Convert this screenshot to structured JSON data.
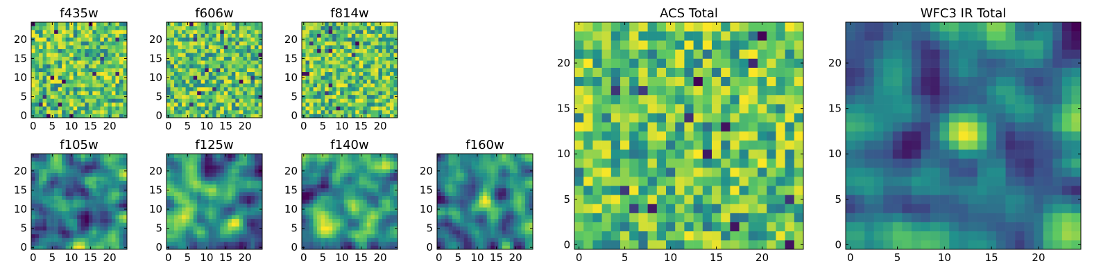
{
  "figure": {
    "colormap": [
      "#440154",
      "#3b528b",
      "#21918c",
      "#5ec962",
      "#fde725"
    ]
  },
  "chart_data": [
    {
      "type": "heatmap",
      "title": "f435w",
      "xlim": [
        -0.5,
        24.5
      ],
      "ylim": [
        -0.5,
        24.5
      ],
      "xticks": [
        0,
        5,
        10,
        15,
        20
      ],
      "yticks": [
        0,
        5,
        10,
        15,
        20
      ],
      "size": [
        25,
        25
      ],
      "colormap": "viridis",
      "pattern": "noise",
      "seed": 11
    },
    {
      "type": "heatmap",
      "title": "f606w",
      "xlim": [
        -0.5,
        24.5
      ],
      "ylim": [
        -0.5,
        24.5
      ],
      "xticks": [
        0,
        5,
        10,
        15,
        20
      ],
      "yticks": [
        0,
        5,
        10,
        15,
        20
      ],
      "size": [
        25,
        25
      ],
      "colormap": "viridis",
      "pattern": "noise",
      "seed": 23
    },
    {
      "type": "heatmap",
      "title": "f814w",
      "xlim": [
        -0.5,
        24.5
      ],
      "ylim": [
        -0.5,
        24.5
      ],
      "xticks": [
        0,
        5,
        10,
        15,
        20
      ],
      "yticks": [
        0,
        5,
        10,
        15,
        20
      ],
      "size": [
        25,
        25
      ],
      "colormap": "viridis",
      "pattern": "noise",
      "seed": 37
    },
    {
      "type": "heatmap",
      "title": "f105w",
      "xlim": [
        -0.5,
        24.5
      ],
      "ylim": [
        -0.5,
        24.5
      ],
      "xticks": [
        0,
        5,
        10,
        15,
        20
      ],
      "yticks": [
        0,
        5,
        10,
        15,
        20
      ],
      "size": [
        25,
        25
      ],
      "colormap": "viridis",
      "pattern": "smooth",
      "seed": 41
    },
    {
      "type": "heatmap",
      "title": "f125w",
      "xlim": [
        -0.5,
        24.5
      ],
      "ylim": [
        -0.5,
        24.5
      ],
      "xticks": [
        0,
        5,
        10,
        15,
        20
      ],
      "yticks": [
        0,
        5,
        10,
        15,
        20
      ],
      "size": [
        25,
        25
      ],
      "colormap": "viridis",
      "pattern": "smooth",
      "seed": 53
    },
    {
      "type": "heatmap",
      "title": "f140w",
      "xlim": [
        -0.5,
        24.5
      ],
      "ylim": [
        -0.5,
        24.5
      ],
      "xticks": [
        0,
        5,
        10,
        15,
        20
      ],
      "yticks": [
        0,
        5,
        10,
        15,
        20
      ],
      "size": [
        25,
        25
      ],
      "colormap": "viridis",
      "pattern": "smooth",
      "seed": 67
    },
    {
      "type": "heatmap",
      "title": "f160w",
      "xlim": [
        -0.5,
        24.5
      ],
      "ylim": [
        -0.5,
        24.5
      ],
      "xticks": [
        0,
        5,
        10,
        15,
        20
      ],
      "yticks": [
        0,
        5,
        10,
        15,
        20
      ],
      "size": [
        25,
        25
      ],
      "colormap": "viridis",
      "pattern": "smooth",
      "seed": 79,
      "bright_spot": [
        12,
        12
      ]
    },
    {
      "type": "heatmap",
      "title": "ACS Total",
      "xlim": [
        -0.5,
        24.5
      ],
      "ylim": [
        -0.5,
        24.5
      ],
      "xticks": [
        0,
        5,
        10,
        15,
        20
      ],
      "yticks": [
        0,
        5,
        10,
        15,
        20
      ],
      "size": [
        25,
        25
      ],
      "colormap": "viridis",
      "pattern": "noise",
      "seed": 91
    },
    {
      "type": "heatmap",
      "title": "WFC3 IR Total",
      "xlim": [
        -0.5,
        24.5
      ],
      "ylim": [
        -0.5,
        24.5
      ],
      "xticks": [
        0,
        5,
        10,
        15,
        20
      ],
      "yticks": [
        0,
        5,
        10,
        15,
        20
      ],
      "size": [
        25,
        25
      ],
      "colormap": "viridis",
      "pattern": "smooth",
      "seed": 103,
      "bright_spot": [
        12,
        12
      ]
    }
  ]
}
